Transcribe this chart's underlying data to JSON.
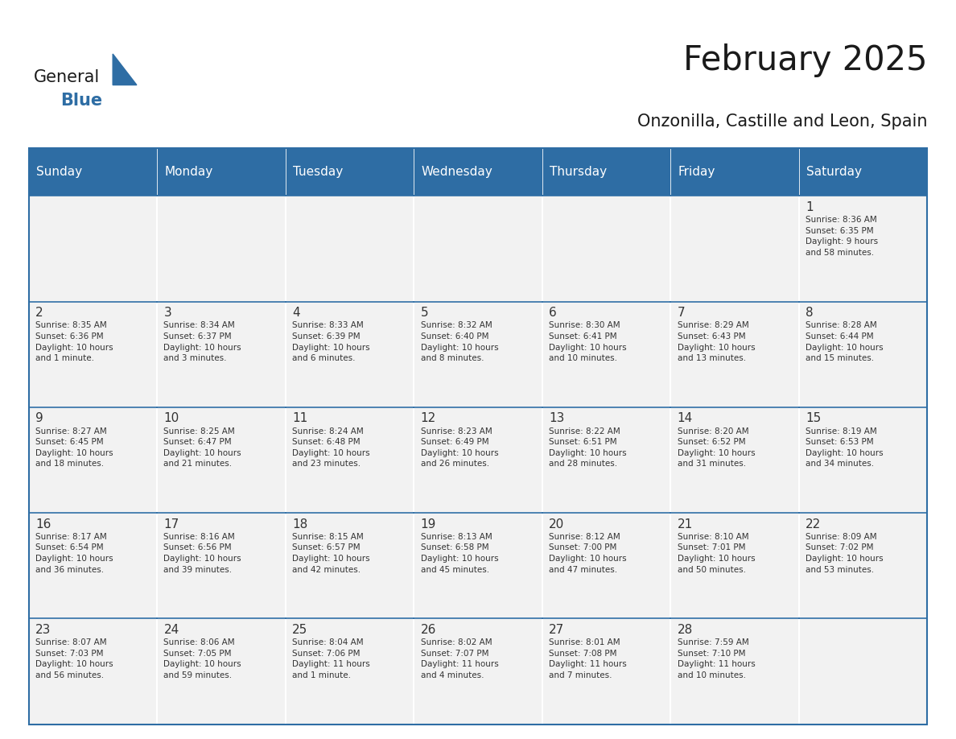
{
  "title": "February 2025",
  "subtitle": "Onzonilla, Castille and Leon, Spain",
  "header_bg": "#2E6DA4",
  "header_text": "#FFFFFF",
  "cell_bg_light": "#F2F2F2",
  "border_color": "#2E6DA4",
  "text_color": "#333333",
  "days_of_week": [
    "Sunday",
    "Monday",
    "Tuesday",
    "Wednesday",
    "Thursday",
    "Friday",
    "Saturday"
  ],
  "weeks": [
    [
      {
        "day": "",
        "info": ""
      },
      {
        "day": "",
        "info": ""
      },
      {
        "day": "",
        "info": ""
      },
      {
        "day": "",
        "info": ""
      },
      {
        "day": "",
        "info": ""
      },
      {
        "day": "",
        "info": ""
      },
      {
        "day": "1",
        "info": "Sunrise: 8:36 AM\nSunset: 6:35 PM\nDaylight: 9 hours\nand 58 minutes."
      }
    ],
    [
      {
        "day": "2",
        "info": "Sunrise: 8:35 AM\nSunset: 6:36 PM\nDaylight: 10 hours\nand 1 minute."
      },
      {
        "day": "3",
        "info": "Sunrise: 8:34 AM\nSunset: 6:37 PM\nDaylight: 10 hours\nand 3 minutes."
      },
      {
        "day": "4",
        "info": "Sunrise: 8:33 AM\nSunset: 6:39 PM\nDaylight: 10 hours\nand 6 minutes."
      },
      {
        "day": "5",
        "info": "Sunrise: 8:32 AM\nSunset: 6:40 PM\nDaylight: 10 hours\nand 8 minutes."
      },
      {
        "day": "6",
        "info": "Sunrise: 8:30 AM\nSunset: 6:41 PM\nDaylight: 10 hours\nand 10 minutes."
      },
      {
        "day": "7",
        "info": "Sunrise: 8:29 AM\nSunset: 6:43 PM\nDaylight: 10 hours\nand 13 minutes."
      },
      {
        "day": "8",
        "info": "Sunrise: 8:28 AM\nSunset: 6:44 PM\nDaylight: 10 hours\nand 15 minutes."
      }
    ],
    [
      {
        "day": "9",
        "info": "Sunrise: 8:27 AM\nSunset: 6:45 PM\nDaylight: 10 hours\nand 18 minutes."
      },
      {
        "day": "10",
        "info": "Sunrise: 8:25 AM\nSunset: 6:47 PM\nDaylight: 10 hours\nand 21 minutes."
      },
      {
        "day": "11",
        "info": "Sunrise: 8:24 AM\nSunset: 6:48 PM\nDaylight: 10 hours\nand 23 minutes."
      },
      {
        "day": "12",
        "info": "Sunrise: 8:23 AM\nSunset: 6:49 PM\nDaylight: 10 hours\nand 26 minutes."
      },
      {
        "day": "13",
        "info": "Sunrise: 8:22 AM\nSunset: 6:51 PM\nDaylight: 10 hours\nand 28 minutes."
      },
      {
        "day": "14",
        "info": "Sunrise: 8:20 AM\nSunset: 6:52 PM\nDaylight: 10 hours\nand 31 minutes."
      },
      {
        "day": "15",
        "info": "Sunrise: 8:19 AM\nSunset: 6:53 PM\nDaylight: 10 hours\nand 34 minutes."
      }
    ],
    [
      {
        "day": "16",
        "info": "Sunrise: 8:17 AM\nSunset: 6:54 PM\nDaylight: 10 hours\nand 36 minutes."
      },
      {
        "day": "17",
        "info": "Sunrise: 8:16 AM\nSunset: 6:56 PM\nDaylight: 10 hours\nand 39 minutes."
      },
      {
        "day": "18",
        "info": "Sunrise: 8:15 AM\nSunset: 6:57 PM\nDaylight: 10 hours\nand 42 minutes."
      },
      {
        "day": "19",
        "info": "Sunrise: 8:13 AM\nSunset: 6:58 PM\nDaylight: 10 hours\nand 45 minutes."
      },
      {
        "day": "20",
        "info": "Sunrise: 8:12 AM\nSunset: 7:00 PM\nDaylight: 10 hours\nand 47 minutes."
      },
      {
        "day": "21",
        "info": "Sunrise: 8:10 AM\nSunset: 7:01 PM\nDaylight: 10 hours\nand 50 minutes."
      },
      {
        "day": "22",
        "info": "Sunrise: 8:09 AM\nSunset: 7:02 PM\nDaylight: 10 hours\nand 53 minutes."
      }
    ],
    [
      {
        "day": "23",
        "info": "Sunrise: 8:07 AM\nSunset: 7:03 PM\nDaylight: 10 hours\nand 56 minutes."
      },
      {
        "day": "24",
        "info": "Sunrise: 8:06 AM\nSunset: 7:05 PM\nDaylight: 10 hours\nand 59 minutes."
      },
      {
        "day": "25",
        "info": "Sunrise: 8:04 AM\nSunset: 7:06 PM\nDaylight: 11 hours\nand 1 minute."
      },
      {
        "day": "26",
        "info": "Sunrise: 8:02 AM\nSunset: 7:07 PM\nDaylight: 11 hours\nand 4 minutes."
      },
      {
        "day": "27",
        "info": "Sunrise: 8:01 AM\nSunset: 7:08 PM\nDaylight: 11 hours\nand 7 minutes."
      },
      {
        "day": "28",
        "info": "Sunrise: 7:59 AM\nSunset: 7:10 PM\nDaylight: 11 hours\nand 10 minutes."
      },
      {
        "day": "",
        "info": ""
      }
    ]
  ],
  "logo_text_general": "General",
  "logo_text_blue": "Blue",
  "logo_color_general": "#1a1a1a",
  "logo_color_blue": "#2E6DA4",
  "logo_triangle_color": "#2E6DA4"
}
